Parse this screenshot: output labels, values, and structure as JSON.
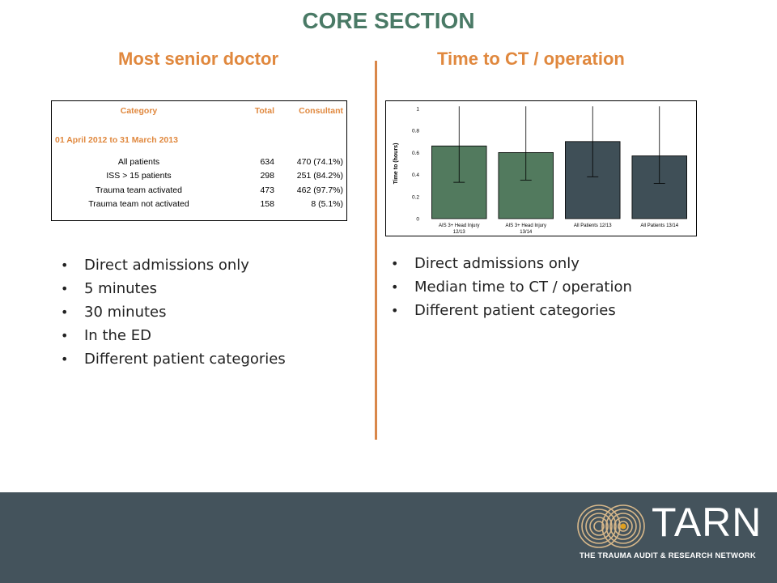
{
  "title": "CORE SECTION",
  "left_heading": "Most senior doctor",
  "right_heading": "Time to CT / operation",
  "table": {
    "headers": [
      "Category",
      "Total",
      "Consultant"
    ],
    "period": "01 April 2012 to 31 March 2013",
    "rows": [
      [
        "All patients",
        "634",
        "470 (74.1%)"
      ],
      [
        "ISS > 15 patients",
        "298",
        "251 (84.2%)"
      ],
      [
        "Trauma team activated",
        "473",
        "462 (97.7%)"
      ],
      [
        "Trauma team not activated",
        "158",
        "8 (5.1%)"
      ]
    ]
  },
  "left_bullets": [
    "Direct admissions only",
    "5 minutes",
    "30 minutes",
    "In the ED",
    "Different patient categories"
  ],
  "right_bullets": [
    "Direct admissions only",
    "Median time to CT / operation",
    "Different patient categories"
  ],
  "chart_data": {
    "type": "bar",
    "ylabel": "Time to (hours)",
    "xlabel": "",
    "ylim": [
      0,
      1
    ],
    "yticks": [
      "0",
      "0.2",
      "0.4",
      "0.6",
      "0.8",
      "1"
    ],
    "categories": [
      [
        "AIS 3+ Head Injury",
        "12/13"
      ],
      [
        "AIS 3+ Head Injury",
        "13/14"
      ],
      [
        "All Patients 12/13"
      ],
      [
        "All Patients 13/14"
      ]
    ],
    "values": [
      0.66,
      0.6,
      0.7,
      0.57
    ],
    "error_low": [
      0.33,
      0.35,
      0.38,
      0.32
    ],
    "error_high": [
      1.06,
      1.06,
      1.06,
      1.06
    ],
    "colors": [
      "#527a5e",
      "#527a5e",
      "#3f4f57",
      "#3f4f57"
    ],
    "grid": false
  },
  "footer": {
    "logo_text": "TARN",
    "logo_sub": "THE TRAUMA AUDIT & RESEARCH NETWORK",
    "background": "#44535c",
    "logo_ring_color": "#d8b88a",
    "logo_dot_color": "#e0a020"
  }
}
